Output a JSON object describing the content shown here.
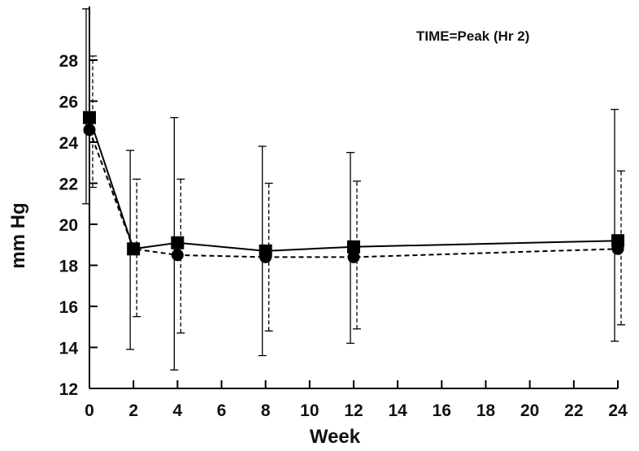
{
  "chart_data": {
    "type": "line",
    "title": "",
    "annotation": "TIME=Peak (Hr 2)",
    "xlabel": "Week",
    "ylabel": "mm Hg",
    "xlim": [
      0,
      24
    ],
    "ylim": [
      12,
      30
    ],
    "xticks": [
      0,
      2,
      4,
      6,
      8,
      10,
      12,
      14,
      16,
      18,
      20,
      22,
      24
    ],
    "xtick_labels": [
      "0",
      "2",
      "4",
      "6",
      "8",
      "10",
      "12",
      "14",
      "16",
      "18",
      "20",
      "22",
      "24"
    ],
    "yticks": [
      12,
      14,
      16,
      18,
      20,
      22,
      24,
      26,
      28
    ],
    "ytick_labels": [
      "12",
      "14",
      "16",
      "18",
      "20",
      "22",
      "24",
      "26",
      "28"
    ],
    "grid": false,
    "legend": false,
    "series": [
      {
        "marker": "square",
        "line_style": "solid",
        "color": "#000000",
        "x": [
          0,
          2,
          4,
          8,
          12,
          24
        ],
        "y": [
          25.2,
          18.8,
          19.1,
          18.7,
          18.9,
          19.2
        ],
        "error_low": [
          21.0,
          13.9,
          12.9,
          13.6,
          14.2,
          14.3
        ],
        "error_high": [
          30.5,
          23.6,
          25.2,
          23.8,
          23.5,
          25.6
        ]
      },
      {
        "marker": "circle",
        "line_style": "dashed",
        "color": "#000000",
        "x": [
          0,
          2,
          4,
          8,
          12,
          24
        ],
        "y": [
          24.6,
          18.8,
          18.5,
          18.4,
          18.4,
          18.8
        ],
        "error_low": [
          21.8,
          15.5,
          14.7,
          14.8,
          14.9,
          15.1
        ],
        "error_high": [
          28.2,
          22.2,
          22.2,
          22.0,
          22.1,
          22.6
        ]
      }
    ]
  }
}
